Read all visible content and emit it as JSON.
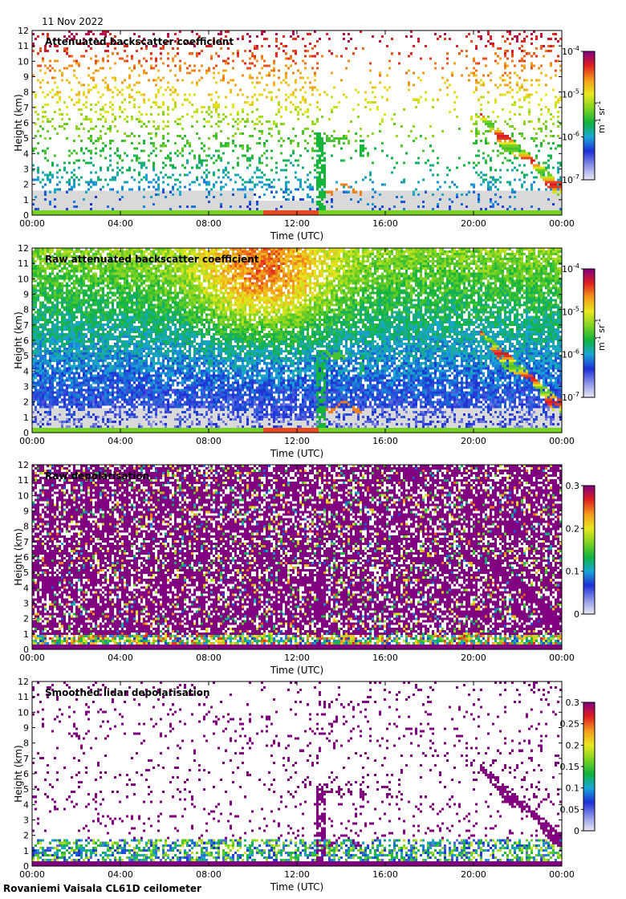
{
  "header": {
    "date": "11 Nov 2022"
  },
  "footer": {
    "site": "Rovaniemi Vaisala CL61D ceilometer"
  },
  "colors": {
    "field": "#d9d9d9",
    "colormap": [
      "#e9e9f4",
      "#8a93e6",
      "#1d2fd6",
      "#1aa6d6",
      "#10b33c",
      "#7ed321",
      "#e8e81f",
      "#f39a1b",
      "#e01f1f",
      "#800080"
    ]
  },
  "chart_data": [
    {
      "type": "heatmap",
      "title": "Attenuated backscatter coefficient",
      "xlabel": "Time (UTC)",
      "ylabel": "Height (km)",
      "xlim": [
        "00:00",
        "00:00"
      ],
      "ylim": [
        0,
        12
      ],
      "x_ticks": [
        "00:00",
        "04:00",
        "08:00",
        "12:00",
        "16:00",
        "20:00",
        "00:00"
      ],
      "y_ticks": [
        "0",
        "1",
        "2",
        "3",
        "4",
        "5",
        "6",
        "7",
        "8",
        "9",
        "10",
        "11",
        "12"
      ],
      "colorbar": {
        "scale": "log",
        "range": [
          1e-07,
          0.0001
        ],
        "ticks": [
          {
            "base": "10",
            "exp": "-7"
          },
          {
            "base": "10",
            "exp": "-6"
          },
          {
            "base": "10",
            "exp": "-5"
          },
          {
            "base": "10",
            "exp": "-4"
          }
        ],
        "units": {
          "a": "m",
          "ae": "-1",
          "b": " sr",
          "be": "-1"
        }
      },
      "style": "att"
    },
    {
      "type": "heatmap",
      "title": "Raw attenuated backscatter coefficient",
      "xlabel": "Time (UTC)",
      "ylabel": "Height (km)",
      "xlim": [
        "00:00",
        "00:00"
      ],
      "ylim": [
        0,
        12
      ],
      "x_ticks": [
        "00:00",
        "04:00",
        "08:00",
        "12:00",
        "16:00",
        "20:00",
        "00:00"
      ],
      "y_ticks": [
        "0",
        "1",
        "2",
        "3",
        "4",
        "5",
        "6",
        "7",
        "8",
        "9",
        "10",
        "11",
        "12"
      ],
      "colorbar": {
        "scale": "log",
        "range": [
          1e-07,
          0.0001
        ],
        "ticks": [
          {
            "base": "10",
            "exp": "-7"
          },
          {
            "base": "10",
            "exp": "-6"
          },
          {
            "base": "10",
            "exp": "-5"
          },
          {
            "base": "10",
            "exp": "-4"
          }
        ],
        "units": {
          "a": "m",
          "ae": "-1",
          "b": " sr",
          "be": "-1"
        }
      },
      "style": "raw"
    },
    {
      "type": "heatmap",
      "title": "Raw depolarisation",
      "xlabel": "Time (UTC)",
      "ylabel": "Height (km)",
      "xlim": [
        "00:00",
        "00:00"
      ],
      "ylim": [
        0,
        12
      ],
      "x_ticks": [
        "00:00",
        "04:00",
        "08:00",
        "12:00",
        "16:00",
        "20:00",
        "00:00"
      ],
      "y_ticks": [
        "0",
        "1",
        "2",
        "3",
        "4",
        "5",
        "6",
        "7",
        "8",
        "9",
        "10",
        "11",
        "12"
      ],
      "colorbar": {
        "scale": "linear",
        "range": [
          0,
          0.3
        ],
        "ticks": [
          {
            "base": "0"
          },
          {
            "base": "0.1"
          },
          {
            "base": "0.2"
          },
          {
            "base": "0.3"
          }
        ]
      },
      "style": "rawdep"
    },
    {
      "type": "heatmap",
      "title": "Smoothed lidar depolarisation",
      "xlabel": "Time (UTC)",
      "ylabel": "Height (km)",
      "xlim": [
        "00:00",
        "00:00"
      ],
      "ylim": [
        0,
        12
      ],
      "x_ticks": [
        "00:00",
        "04:00",
        "08:00",
        "12:00",
        "16:00",
        "20:00",
        "00:00"
      ],
      "y_ticks": [
        "0",
        "1",
        "2",
        "3",
        "4",
        "5",
        "6",
        "7",
        "8",
        "9",
        "10",
        "11",
        "12"
      ],
      "colorbar": {
        "scale": "linear",
        "range": [
          0,
          0.3
        ],
        "ticks": [
          {
            "base": "0"
          },
          {
            "base": "0.05"
          },
          {
            "base": "0.1"
          },
          {
            "base": "0.15"
          },
          {
            "base": "0.2"
          },
          {
            "base": "0.25"
          },
          {
            "base": "0.3"
          }
        ]
      },
      "style": "smooth"
    }
  ]
}
